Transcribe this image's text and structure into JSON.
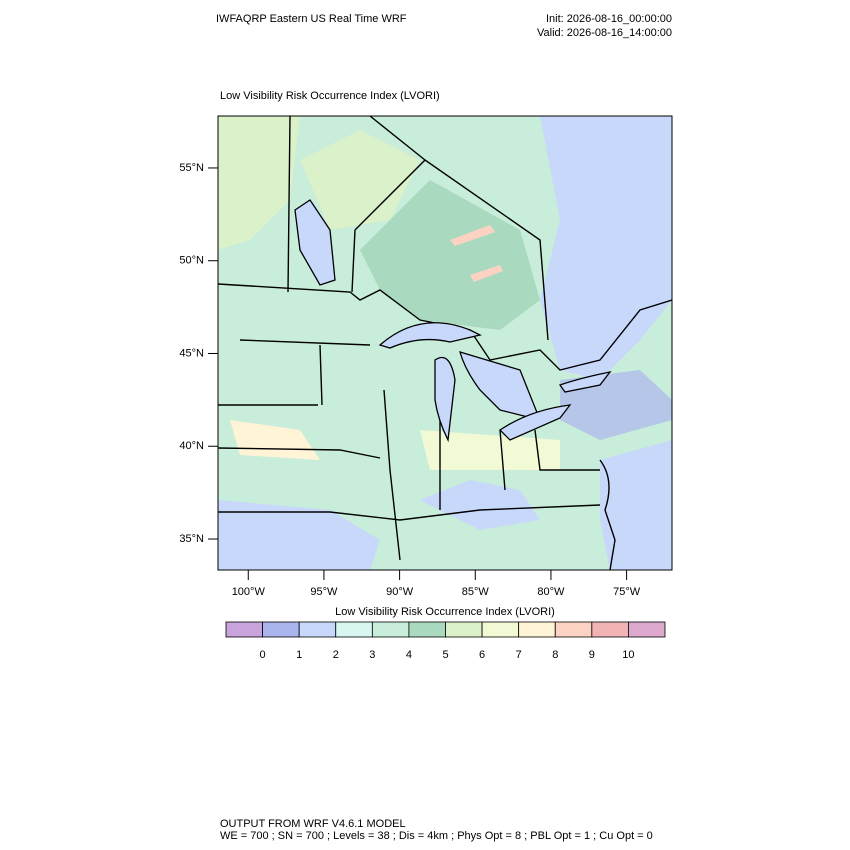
{
  "header": {
    "title": "IWFAQRP Eastern US Real Time WRF",
    "init": "Init: 2026-08-16_00:00:00",
    "valid": "Valid: 2026-08-16_14:00:00"
  },
  "map": {
    "subtitle": "Low Visibility Risk Occurrence Index   (LVORI)",
    "xlim": [
      -102,
      -72
    ],
    "ylim": [
      33.33,
      57.8
    ],
    "lat_ticks": [
      {
        "value": 55,
        "label": "55°N"
      },
      {
        "value": 50,
        "label": "50°N"
      },
      {
        "value": 45,
        "label": "45°N"
      },
      {
        "value": 40,
        "label": "40°N"
      },
      {
        "value": 35,
        "label": "35°N"
      }
    ],
    "lon_ticks": [
      {
        "value": -100,
        "label": "100°W"
      },
      {
        "value": -95,
        "label": "95°W"
      },
      {
        "value": -90,
        "label": "90°W"
      },
      {
        "value": -85,
        "label": "85°W"
      },
      {
        "value": -80,
        "label": "80°W"
      },
      {
        "value": -75,
        "label": "75°W"
      }
    ]
  },
  "colorbar": {
    "title": "Low Visibility Risk Occurrence Index  (LVORI)",
    "colors": [
      "#c9a3dc",
      "#acb5ee",
      "#c8d8fb",
      "#d9f7f1",
      "#c8edda",
      "#a9d9bf",
      "#daf1c9",
      "#f2f9d5",
      "#fff4d6",
      "#fcd3c3",
      "#f1b3b3",
      "#dca9cd"
    ],
    "levels": [
      0,
      1,
      2,
      3,
      4,
      5,
      6,
      7,
      8,
      9,
      10
    ]
  },
  "footer": {
    "lines": [
      "OUTPUT FROM WRF V4.6.1 MODEL",
      "WE = 700 ; SN = 700 ; Levels = 38 ; Dis = 4km ; Phys Opt = 8 ; PBL Opt = 1 ; Cu Opt = 0"
    ]
  }
}
